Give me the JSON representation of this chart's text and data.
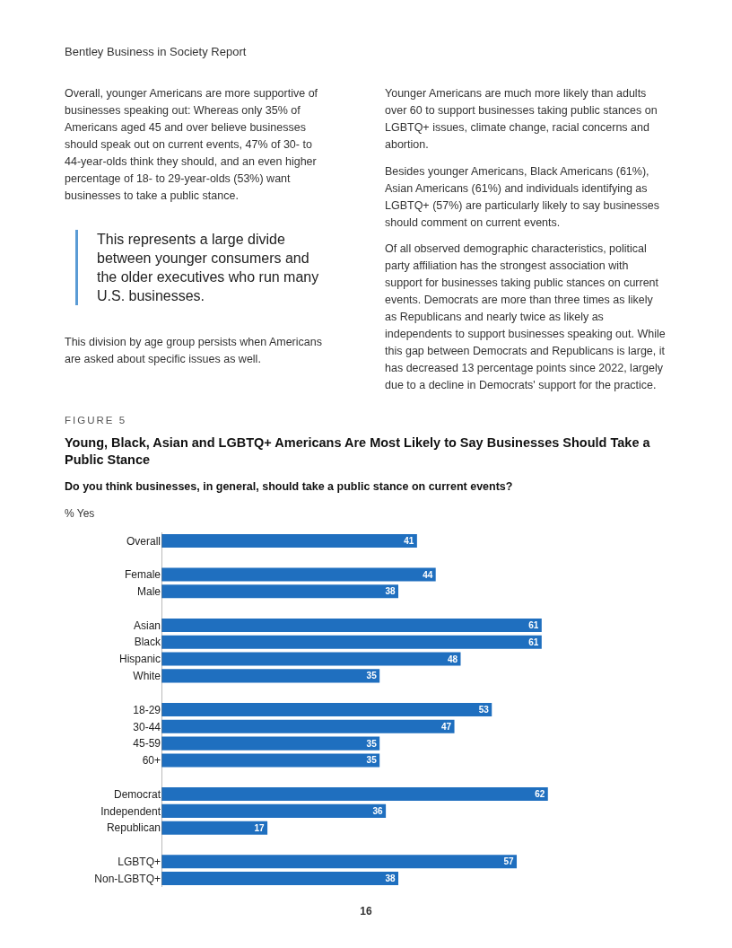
{
  "chart_data": {
    "type": "bar",
    "orientation": "horizontal",
    "title": "Young, Black, Asian and LGBTQ+ Americans Are Most Likely to Say Businesses Should Take a Public Stance",
    "subtitle": "Do you think businesses, in general, should take a public stance on current events?",
    "categories": [
      "Overall",
      null,
      "Female",
      "Male",
      null,
      "Asian",
      "Black",
      "Hispanic",
      "White",
      null,
      "18-29",
      "30-44",
      "45-59",
      "60+",
      null,
      "Democrat",
      "Independent",
      "Republican",
      null,
      "LGBTQ+",
      "Non-LGBTQ+"
    ],
    "values": [
      41,
      null,
      44,
      38,
      null,
      61,
      61,
      48,
      35,
      null,
      53,
      47,
      35,
      35,
      null,
      62,
      36,
      17,
      null,
      57,
      38
    ],
    "color": "#1f6fbf",
    "data_labels": true,
    "tick_labels": "y",
    "grid": false,
    "legend": false,
    "annotations": [
      "Bentley Business in Society Report",
      "Overall, younger Americans are more supportive of businesses speaking out: Whereas only 35% of Americans aged 45 and over believe businesses should speak out on current events, 47% of 30- to 44-year-olds think they should, and an even higher percentage of 18- to 29-year-olds (53%) want businesses to take a public stance.",
      "This represents a large divide between younger consumers and the older executives who run many U.S. businesses.",
      "This division by age group persists when Americans are asked about specific issues as well.",
      "Younger Americans are much more likely than adults over 60 to support businesses taking public stances on LGBTQ+ issues, climate change, racial concerns and abortion.",
      "Besides younger Americans, Black Americans (61%), Asian Americans (61%) and individuals identifying as LGBTQ+ (57%) are particularly likely to say businesses should comment on current events.",
      "Of all observed demographic characteristics, political party affiliation has the strongest association with support for businesses taking public stances on current events. Democrats are more than three times as likely as Republicans and nearly twice as likely as independents to support businesses speaking out. While this gap between Democrats and Republicans is large, it has decreased 13 percentage points since 2022, largely due to a decline in Democrats' support for the practice.",
      "FIGURE 5",
      "% Yes",
      "16"
    ]
  }
}
